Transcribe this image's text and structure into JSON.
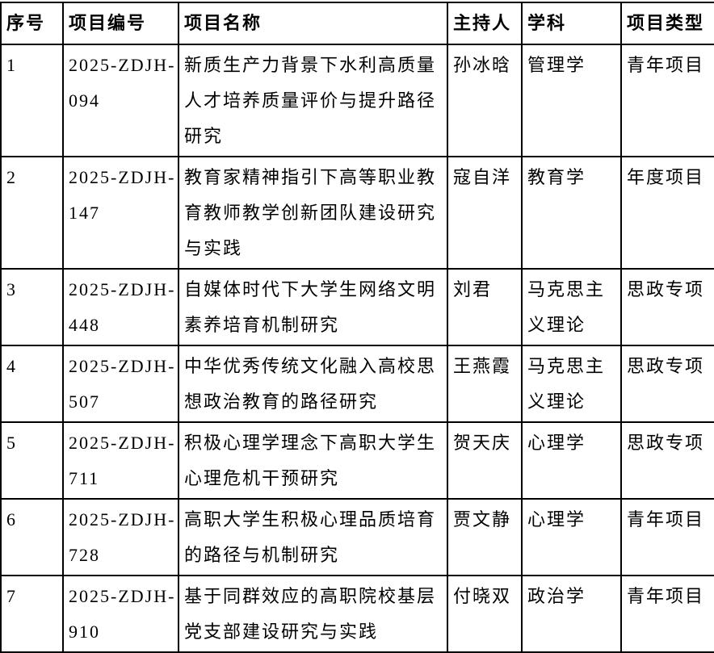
{
  "table": {
    "columns": [
      {
        "key": "no",
        "label": "序号"
      },
      {
        "key": "code",
        "label": "项目编号"
      },
      {
        "key": "title",
        "label": "项目名称"
      },
      {
        "key": "leader",
        "label": "主持人"
      },
      {
        "key": "discipline",
        "label": "学科"
      },
      {
        "key": "type",
        "label": "项目类型"
      }
    ],
    "rows": [
      {
        "no": "1",
        "code_line1": "2025-ZDJH-",
        "code_line2": "094",
        "title": "新质生产力背景下水利高质量人才培养质量评价与提升路径研究",
        "leader": "孙冰晗",
        "discipline": "管理学",
        "type": "青年项目"
      },
      {
        "no": "2",
        "code_line1": "2025-ZDJH-",
        "code_line2": "147",
        "title": "教育家精神指引下高等职业教育教师教学创新团队建设研究与实践",
        "leader": "寇自洋",
        "discipline": "教育学",
        "type": "年度项目"
      },
      {
        "no": "3",
        "code_line1": "2025-ZDJH-",
        "code_line2": "448",
        "title": "自媒体时代下大学生网络文明素养培育机制研究",
        "leader": "刘君",
        "discipline": "马克思主义理论",
        "type": "思政专项"
      },
      {
        "no": "4",
        "code_line1": "2025-ZDJH-",
        "code_line2": "507",
        "title": "中华优秀传统文化融入高校思想政治教育的路径研究",
        "leader": "王燕霞",
        "discipline": "马克思主义理论",
        "type": "思政专项"
      },
      {
        "no": "5",
        "code_line1": "2025-ZDJH-",
        "code_line2": "711",
        "title": "积极心理学理念下高职大学生心理危机干预研究",
        "leader": "贺天庆",
        "discipline": "心理学",
        "type": "思政专项"
      },
      {
        "no": "6",
        "code_line1": "2025-ZDJH-",
        "code_line2": "728",
        "title": "高职大学生积极心理品质培育的路径与机制研究",
        "leader": "贾文静",
        "discipline": "心理学",
        "type": "青年项目"
      },
      {
        "no": "7",
        "code_line1": "2025-ZDJH-",
        "code_line2": "910",
        "title": "基于同群效应的高职院校基层党支部建设研究与实践",
        "leader": "付晓双",
        "discipline": "政治学",
        "type": "青年项目"
      }
    ]
  }
}
